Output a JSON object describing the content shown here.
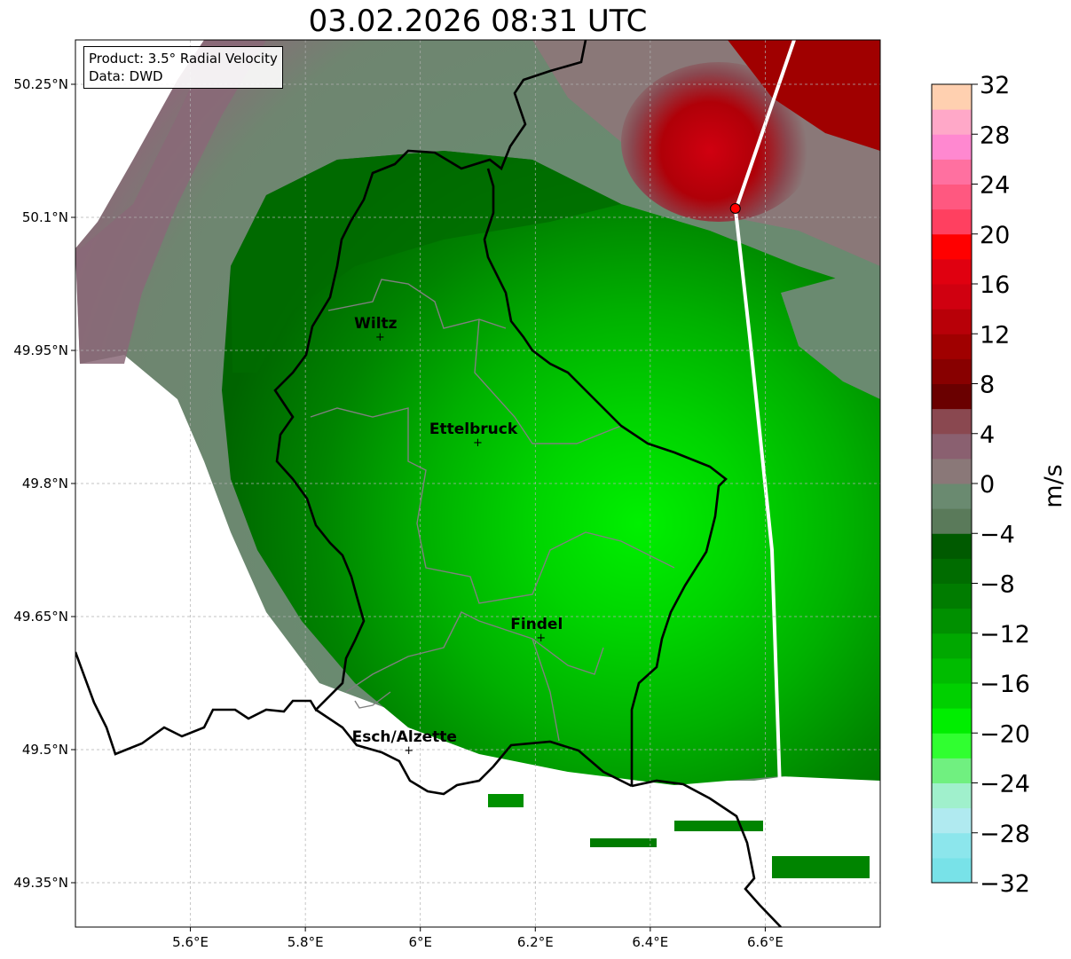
{
  "title": "03.02.2026 08:31 UTC",
  "info_box": {
    "line1": "Product: 3.5° Radial Velocity",
    "line2": "Data: DWD"
  },
  "axes": {
    "lon_ticks": [
      {
        "value": 5.6,
        "label": "5.6°E"
      },
      {
        "value": 5.8,
        "label": "5.8°E"
      },
      {
        "value": 6.0,
        "label": "6°E"
      },
      {
        "value": 6.2,
        "label": "6.2°E"
      },
      {
        "value": 6.4,
        "label": "6.4°E"
      },
      {
        "value": 6.6,
        "label": "6.6°E"
      }
    ],
    "lat_ticks": [
      {
        "value": 50.25,
        "label": "50.25°N"
      },
      {
        "value": 50.1,
        "label": "50.1°N"
      },
      {
        "value": 49.95,
        "label": "49.95°N"
      },
      {
        "value": 49.8,
        "label": "49.8°N"
      },
      {
        "value": 49.65,
        "label": "49.65°N"
      },
      {
        "value": 49.5,
        "label": "49.5°N"
      },
      {
        "value": 49.35,
        "label": "49.35°N"
      }
    ],
    "lon_range": [
      5.4,
      6.8
    ],
    "lat_range": [
      49.3,
      50.3
    ]
  },
  "cities": [
    {
      "name": "Wiltz",
      "lon": 5.93,
      "lat": 49.966
    },
    {
      "name": "Ettelbruck",
      "lon": 6.1,
      "lat": 49.847
    },
    {
      "name": "Findel",
      "lon": 6.21,
      "lat": 49.627
    },
    {
      "name": "Esch/Alzette",
      "lon": 5.98,
      "lat": 49.5
    }
  ],
  "radar_site": {
    "lon": 6.548,
    "lat": 50.11,
    "color": "#ff0000"
  },
  "colorbar": {
    "label": "m/s",
    "range": [
      -32,
      32
    ],
    "step": 2,
    "ticks": [
      {
        "v": 32,
        "t": "32"
      },
      {
        "v": 28,
        "t": "28"
      },
      {
        "v": 24,
        "t": "24"
      },
      {
        "v": 20,
        "t": "20"
      },
      {
        "v": 16,
        "t": "16"
      },
      {
        "v": 12,
        "t": "12"
      },
      {
        "v": 8,
        "t": "8"
      },
      {
        "v": 4,
        "t": "4"
      },
      {
        "v": 0,
        "t": "0"
      },
      {
        "v": -4,
        "t": "−4"
      },
      {
        "v": -8,
        "t": "−8"
      },
      {
        "v": -12,
        "t": "−12"
      },
      {
        "v": -16,
        "t": "−16"
      },
      {
        "v": -20,
        "t": "−20"
      },
      {
        "v": -24,
        "t": "−24"
      },
      {
        "v": -28,
        "t": "−28"
      },
      {
        "v": -32,
        "t": "−32"
      }
    ],
    "colors_bottom_to_top": [
      "#78e2e8",
      "#8ce6ec",
      "#b0eaf0",
      "#a0f0cc",
      "#70f080",
      "#30ff30",
      "#00ee00",
      "#00d000",
      "#00bc00",
      "#00a800",
      "#009000",
      "#007c00",
      "#006c00",
      "#005a00",
      "#5a7a5a",
      "#6a8a70",
      "#8a7878",
      "#8a6070",
      "#8a4850",
      "#6a0000",
      "#880000",
      "#a00000",
      "#b80008",
      "#d00010",
      "#e00010",
      "#ff0000",
      "#ff4060",
      "#ff5880",
      "#ff70a0",
      "#ff88d0",
      "#ffa8c8",
      "#ffd0b0"
    ]
  }
}
